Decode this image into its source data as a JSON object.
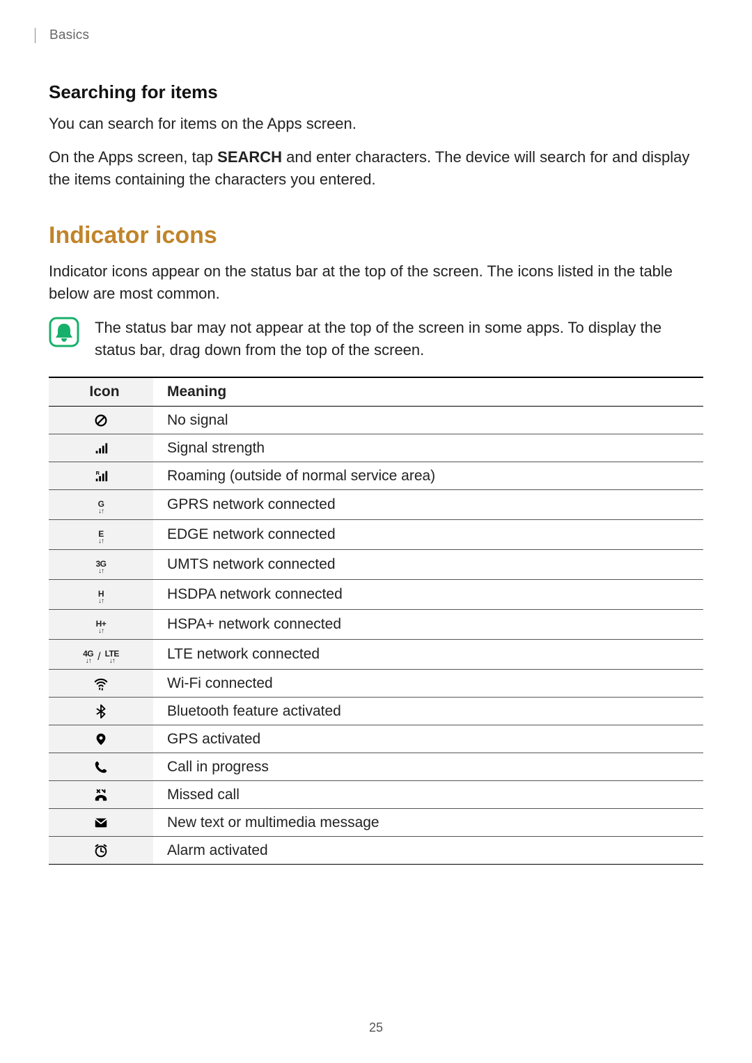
{
  "breadcrumb": "Basics",
  "section1": {
    "heading": "Searching for items",
    "p1": "You can search for items on the Apps screen.",
    "p2_pre": "On the Apps screen, tap ",
    "p2_bold": "SEARCH",
    "p2_post": " and enter characters. The device will search for and display the items containing the characters you entered."
  },
  "section2": {
    "heading": "Indicator icons",
    "heading_color": "#c0842a",
    "intro": "Indicator icons appear on the status bar at the top of the screen. The icons listed in the table below are most common.",
    "note": "The status bar may not appear at the top of the screen in some apps. To display the status bar, drag down from the top of the screen.",
    "note_icon_stroke": "#17b06a",
    "note_icon_fill": "#17b06a"
  },
  "table": {
    "header_icon": "Icon",
    "header_meaning": "Meaning",
    "icon_bg": "#f2f2f2",
    "rows": [
      {
        "icon_type": "no-signal",
        "meaning": "No signal"
      },
      {
        "icon_type": "signal",
        "meaning": "Signal strength"
      },
      {
        "icon_type": "roaming",
        "meaning": "Roaming (outside of normal service area)"
      },
      {
        "icon_type": "net",
        "net_label": "G",
        "meaning": "GPRS network connected"
      },
      {
        "icon_type": "net",
        "net_label": "E",
        "meaning": "EDGE network connected"
      },
      {
        "icon_type": "net",
        "net_label": "3G",
        "meaning": "UMTS network connected"
      },
      {
        "icon_type": "net",
        "net_label": "H",
        "meaning": "HSDPA network connected"
      },
      {
        "icon_type": "net",
        "net_label": "H+",
        "meaning": "HSPA+ network connected"
      },
      {
        "icon_type": "net-dual",
        "net_label_a": "4G",
        "net_label_b": "LTE",
        "meaning": "LTE network connected"
      },
      {
        "icon_type": "wifi",
        "meaning": "Wi-Fi connected"
      },
      {
        "icon_type": "bluetooth",
        "meaning": "Bluetooth feature activated"
      },
      {
        "icon_type": "gps",
        "meaning": "GPS activated"
      },
      {
        "icon_type": "call",
        "meaning": "Call in progress"
      },
      {
        "icon_type": "missed-call",
        "meaning": "Missed call"
      },
      {
        "icon_type": "message",
        "meaning": "New text or multimedia message"
      },
      {
        "icon_type": "alarm",
        "meaning": "Alarm activated"
      }
    ]
  },
  "page_number": "25"
}
